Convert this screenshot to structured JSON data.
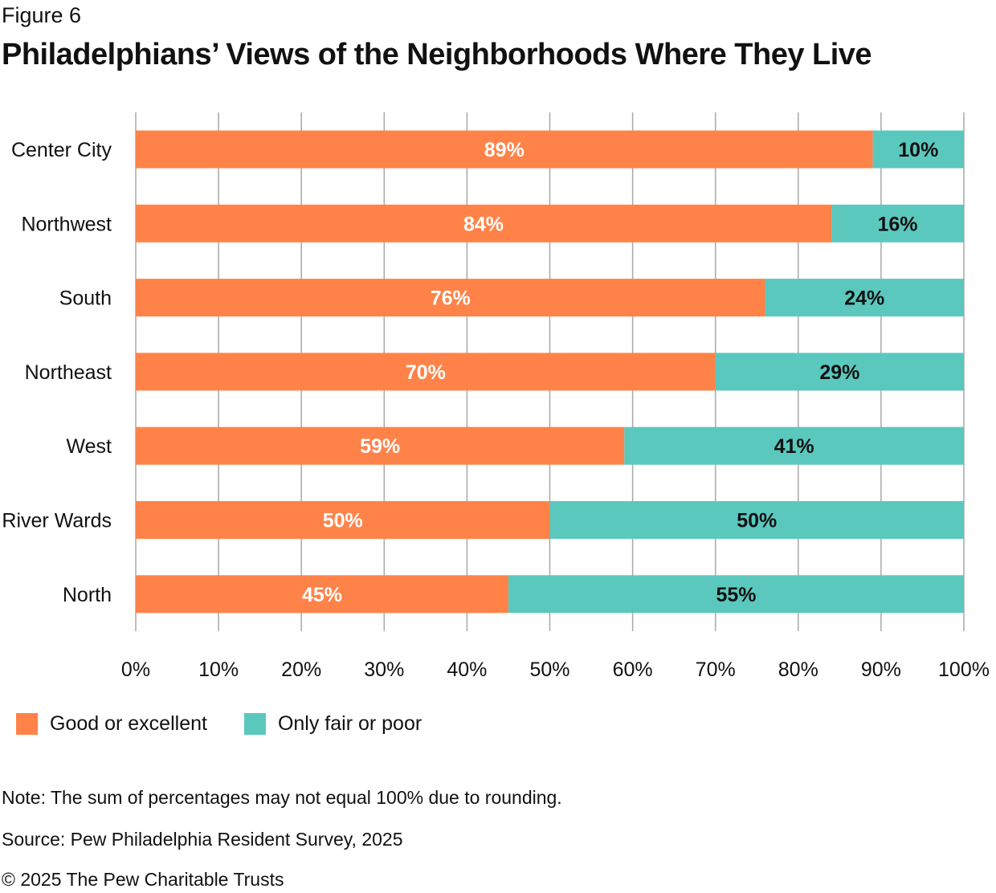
{
  "figure_label": "Figure 6",
  "chart_data": {
    "type": "bar",
    "orientation": "horizontal",
    "stacked": true,
    "title": "Philadelphians’ Views of the Neighborhoods Where They Live",
    "categories": [
      "Center City",
      "Northwest",
      "South",
      "Northeast",
      "West",
      "River Wards",
      "North"
    ],
    "series": [
      {
        "name": "Good or excellent",
        "color": "#FF8349",
        "values": [
          89,
          84,
          76,
          70,
          59,
          50,
          45
        ],
        "labels": [
          "89%",
          "84%",
          "76%",
          "70%",
          "59%",
          "50%",
          "45%"
        ]
      },
      {
        "name": "Only fair or poor",
        "color": "#5BC8BE",
        "values": [
          10,
          16,
          24,
          29,
          41,
          50,
          55
        ],
        "labels": [
          "10%",
          "16%",
          "24%",
          "29%",
          "41%",
          "50%",
          "55%"
        ]
      }
    ],
    "xlim": [
      0,
      100
    ],
    "xticks": [
      0,
      10,
      20,
      30,
      40,
      50,
      60,
      70,
      80,
      90,
      100
    ],
    "xtick_labels": [
      "0%",
      "10%",
      "20%",
      "30%",
      "40%",
      "50%",
      "60%",
      "70%",
      "80%",
      "90%",
      "100%"
    ],
    "grid": true,
    "legend_position": "bottom-left"
  },
  "notes": {
    "note": "Note: The sum of percentages may not equal 100% due to rounding.",
    "source": "Source: Pew Philadelphia Resident Survey, 2025",
    "copyright": "© 2025 The Pew Charitable Trusts"
  }
}
